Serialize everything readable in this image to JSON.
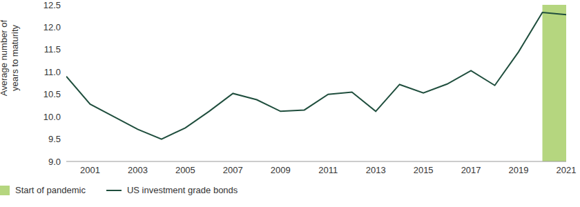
{
  "chart_data": {
    "type": "line",
    "y_label": "Average number of years to maturity",
    "x": [
      2000,
      2001,
      2002,
      2003,
      2004,
      2005,
      2006,
      2007,
      2008,
      2009,
      2010,
      2011,
      2012,
      2013,
      2014,
      2015,
      2016,
      2017,
      2018,
      2019,
      2020,
      2021
    ],
    "series": [
      {
        "name": "US investment grade bonds",
        "color": "#1f4e3d",
        "values": [
          10.9,
          10.28,
          10.0,
          9.72,
          9.5,
          9.75,
          10.12,
          10.52,
          10.38,
          10.12,
          10.15,
          10.5,
          10.55,
          10.12,
          10.72,
          10.53,
          10.73,
          11.03,
          10.7,
          11.45,
          12.33,
          12.28
        ]
      }
    ],
    "annotations": [
      {
        "x_start": 2020,
        "x_end": 2021,
        "label": "Start of pandemic",
        "color": "#b5d67f"
      }
    ],
    "xlim": [
      2000,
      2021
    ],
    "xticks": [
      2001,
      2003,
      2005,
      2007,
      2009,
      2011,
      2013,
      2015,
      2017,
      2019,
      2021
    ],
    "ylim": [
      9,
      12.5
    ],
    "yticks": [
      {
        "value": 9,
        "label": "9.0"
      },
      9.5,
      {
        "value": 10,
        "label": "10.0"
      },
      10.5,
      {
        "value": 11,
        "label": "11.0"
      },
      11.5,
      {
        "value": 12,
        "label": "12.0"
      },
      12.5
    ],
    "grid": false,
    "legend": "bottom"
  }
}
